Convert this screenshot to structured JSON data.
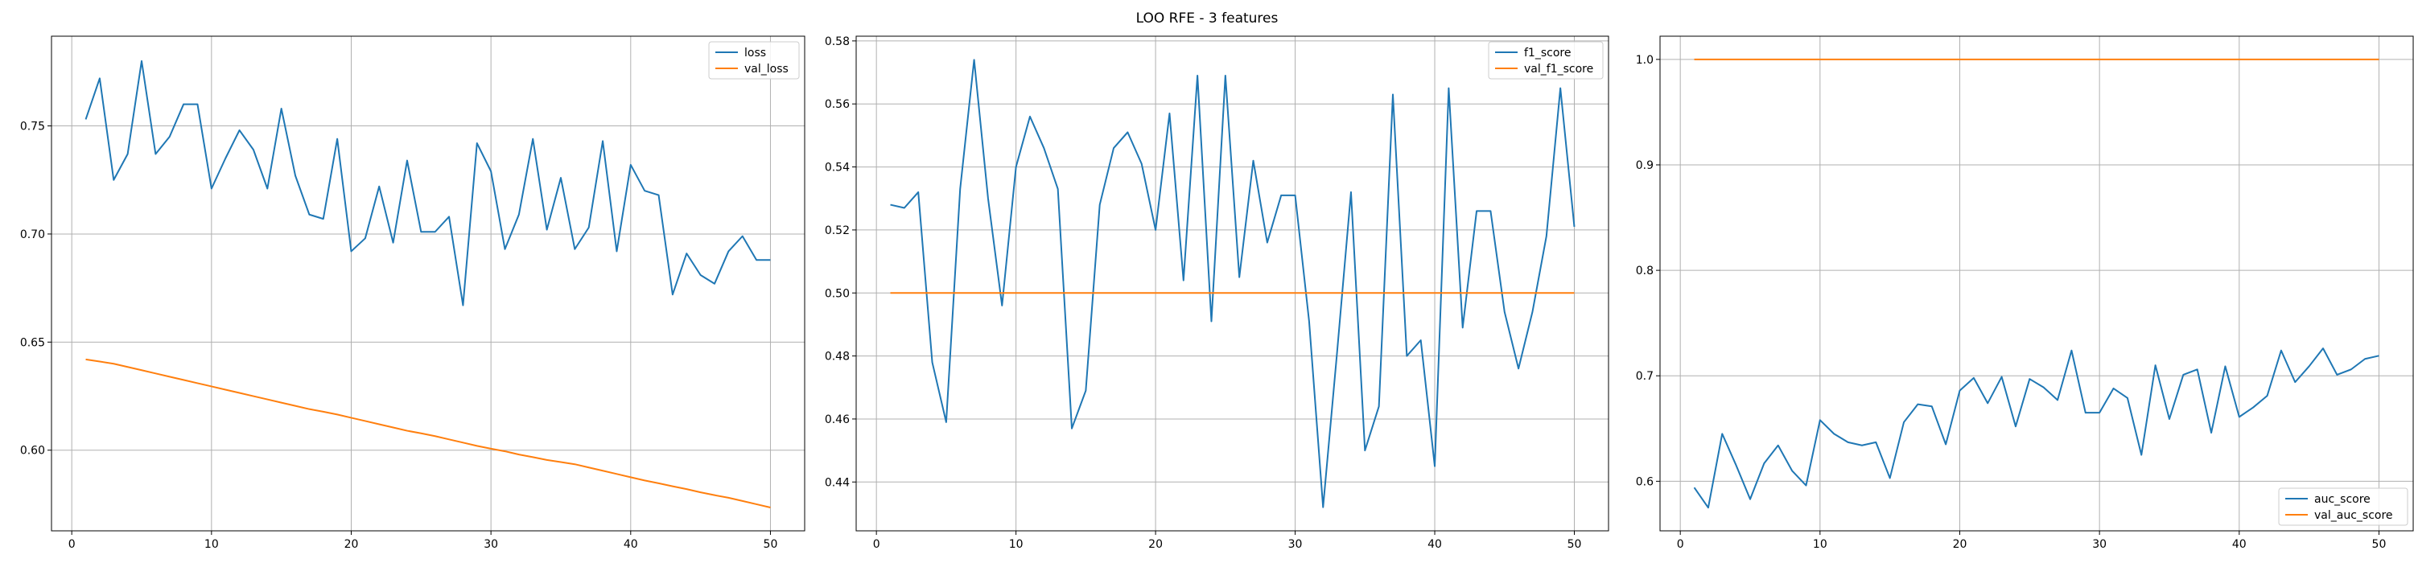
{
  "figure": {
    "title": "LOO RFE - 3 features"
  },
  "colors": {
    "series_1": "#1f77b4",
    "series_2": "#ff7f0e",
    "grid": "#b0b0b0"
  },
  "chart_data": [
    {
      "type": "line",
      "title": "",
      "xlabel": "",
      "ylabel": "",
      "xlim": [
        -1.45,
        52.45
      ],
      "ylim": [
        0.5627,
        0.7915
      ],
      "xticks": [
        0,
        10,
        20,
        30,
        40,
        50
      ],
      "yticks": [
        0.6,
        0.65,
        0.7,
        0.75
      ],
      "ytick_labels": [
        "0.60",
        "0.65",
        "0.70",
        "0.75"
      ],
      "grid": true,
      "legend_position": "top-right",
      "x": [
        1,
        2,
        3,
        4,
        5,
        6,
        7,
        8,
        9,
        10,
        11,
        12,
        13,
        14,
        15,
        16,
        17,
        18,
        19,
        20,
        21,
        22,
        23,
        24,
        25,
        26,
        27,
        28,
        29,
        30,
        31,
        32,
        33,
        34,
        35,
        36,
        37,
        38,
        39,
        40,
        41,
        42,
        43,
        44,
        45,
        46,
        47,
        48,
        49,
        50
      ],
      "series": [
        {
          "name": "loss",
          "color": "#1f77b4",
          "values": [
            0.753,
            0.772,
            0.725,
            0.737,
            0.78,
            0.737,
            0.745,
            0.76,
            0.76,
            0.721,
            0.735,
            0.748,
            0.739,
            0.721,
            0.758,
            0.727,
            0.709,
            0.707,
            0.744,
            0.692,
            0.698,
            0.722,
            0.696,
            0.734,
            0.701,
            0.701,
            0.708,
            0.667,
            0.742,
            0.729,
            0.693,
            0.709,
            0.744,
            0.702,
            0.726,
            0.693,
            0.703,
            0.743,
            0.692,
            0.732,
            0.72,
            0.718,
            0.672,
            0.691,
            0.681,
            0.677,
            0.692,
            0.699,
            0.688,
            0.688
          ]
        },
        {
          "name": "val_loss",
          "color": "#ff7f0e",
          "values": [
            0.642,
            0.641,
            0.64,
            0.6385,
            0.637,
            0.6355,
            0.634,
            0.6325,
            0.631,
            0.6295,
            0.628,
            0.6265,
            0.625,
            0.6235,
            0.622,
            0.6205,
            0.619,
            0.6178,
            0.6165,
            0.615,
            0.6135,
            0.612,
            0.6105,
            0.609,
            0.6078,
            0.6065,
            0.605,
            0.6035,
            0.602,
            0.6007,
            0.5995,
            0.598,
            0.5968,
            0.5955,
            0.5945,
            0.5935,
            0.592,
            0.5905,
            0.589,
            0.5875,
            0.586,
            0.5847,
            0.5833,
            0.582,
            0.5805,
            0.5792,
            0.578,
            0.5765,
            0.575,
            0.5735
          ]
        }
      ]
    },
    {
      "type": "line",
      "title": "",
      "xlabel": "",
      "ylabel": "",
      "xlim": [
        -1.45,
        52.45
      ],
      "ylim": [
        0.4245,
        0.5815
      ],
      "xticks": [
        0,
        10,
        20,
        30,
        40,
        50
      ],
      "yticks": [
        0.44,
        0.46,
        0.48,
        0.5,
        0.52,
        0.54,
        0.56,
        0.58
      ],
      "ytick_labels": [
        "0.44",
        "0.46",
        "0.48",
        "0.50",
        "0.52",
        "0.54",
        "0.56",
        "0.58"
      ],
      "grid": true,
      "legend_position": "top-right",
      "x": [
        1,
        2,
        3,
        4,
        5,
        6,
        7,
        8,
        9,
        10,
        11,
        12,
        13,
        14,
        15,
        16,
        17,
        18,
        19,
        20,
        21,
        22,
        23,
        24,
        25,
        26,
        27,
        28,
        29,
        30,
        31,
        32,
        33,
        34,
        35,
        36,
        37,
        38,
        39,
        40,
        41,
        42,
        43,
        44,
        45,
        46,
        47,
        48,
        49,
        50
      ],
      "series": [
        {
          "name": "f1_score",
          "color": "#1f77b4",
          "values": [
            0.528,
            0.527,
            0.532,
            0.478,
            0.459,
            0.533,
            0.574,
            0.53,
            0.496,
            0.54,
            0.556,
            0.546,
            0.533,
            0.457,
            0.469,
            0.528,
            0.546,
            0.551,
            0.541,
            0.52,
            0.557,
            0.504,
            0.569,
            0.491,
            0.569,
            0.505,
            0.542,
            0.516,
            0.531,
            0.531,
            0.491,
            0.432,
            0.481,
            0.532,
            0.45,
            0.464,
            0.563,
            0.48,
            0.485,
            0.445,
            0.565,
            0.489,
            0.526,
            0.526,
            0.494,
            0.476,
            0.494,
            0.518,
            0.565,
            0.521
          ]
        },
        {
          "name": "val_f1_score",
          "color": "#ff7f0e",
          "values": [
            0.5,
            0.5,
            0.5,
            0.5,
            0.5,
            0.5,
            0.5,
            0.5,
            0.5,
            0.5,
            0.5,
            0.5,
            0.5,
            0.5,
            0.5,
            0.5,
            0.5,
            0.5,
            0.5,
            0.5,
            0.5,
            0.5,
            0.5,
            0.5,
            0.5,
            0.5,
            0.5,
            0.5,
            0.5,
            0.5,
            0.5,
            0.5,
            0.5,
            0.5,
            0.5,
            0.5,
            0.5,
            0.5,
            0.5,
            0.5,
            0.5,
            0.5,
            0.5,
            0.5,
            0.5,
            0.5,
            0.5,
            0.5,
            0.5,
            0.5
          ]
        }
      ]
    },
    {
      "type": "line",
      "title": "",
      "xlabel": "",
      "ylabel": "",
      "xlim": [
        -1.45,
        52.45
      ],
      "ylim": [
        0.553,
        1.022
      ],
      "xticks": [
        0,
        10,
        20,
        30,
        40,
        50
      ],
      "yticks": [
        0.6,
        0.7,
        0.8,
        0.9,
        1.0
      ],
      "ytick_labels": [
        "0.6",
        "0.7",
        "0.8",
        "0.9",
        "1.0"
      ],
      "grid": true,
      "legend_position": "bottom-right",
      "x": [
        1,
        2,
        3,
        4,
        5,
        6,
        7,
        8,
        9,
        10,
        11,
        12,
        13,
        14,
        15,
        16,
        17,
        18,
        19,
        20,
        21,
        22,
        23,
        24,
        25,
        26,
        27,
        28,
        29,
        30,
        31,
        32,
        33,
        34,
        35,
        36,
        37,
        38,
        39,
        40,
        41,
        42,
        43,
        44,
        45,
        46,
        47,
        48,
        49,
        50
      ],
      "series": [
        {
          "name": "auc_score",
          "color": "#1f77b4",
          "values": [
            0.594,
            0.575,
            0.645,
            0.615,
            0.583,
            0.617,
            0.634,
            0.61,
            0.596,
            0.658,
            0.645,
            0.637,
            0.634,
            0.637,
            0.603,
            0.656,
            0.673,
            0.671,
            0.635,
            0.686,
            0.698,
            0.674,
            0.699,
            0.652,
            0.697,
            0.689,
            0.677,
            0.724,
            0.665,
            0.665,
            0.688,
            0.679,
            0.625,
            0.71,
            0.659,
            0.701,
            0.706,
            0.646,
            0.709,
            0.661,
            0.67,
            0.681,
            0.724,
            0.694,
            0.709,
            0.726,
            0.701,
            0.706,
            0.716,
            0.719
          ]
        },
        {
          "name": "val_auc_score",
          "color": "#ff7f0e",
          "values": [
            1.0,
            1.0,
            1.0,
            1.0,
            1.0,
            1.0,
            1.0,
            1.0,
            1.0,
            1.0,
            1.0,
            1.0,
            1.0,
            1.0,
            1.0,
            1.0,
            1.0,
            1.0,
            1.0,
            1.0,
            1.0,
            1.0,
            1.0,
            1.0,
            1.0,
            1.0,
            1.0,
            1.0,
            1.0,
            1.0,
            1.0,
            1.0,
            1.0,
            1.0,
            1.0,
            1.0,
            1.0,
            1.0,
            1.0,
            1.0,
            1.0,
            1.0,
            1.0,
            1.0,
            1.0,
            1.0,
            1.0,
            1.0,
            1.0,
            1.0
          ]
        }
      ]
    }
  ]
}
